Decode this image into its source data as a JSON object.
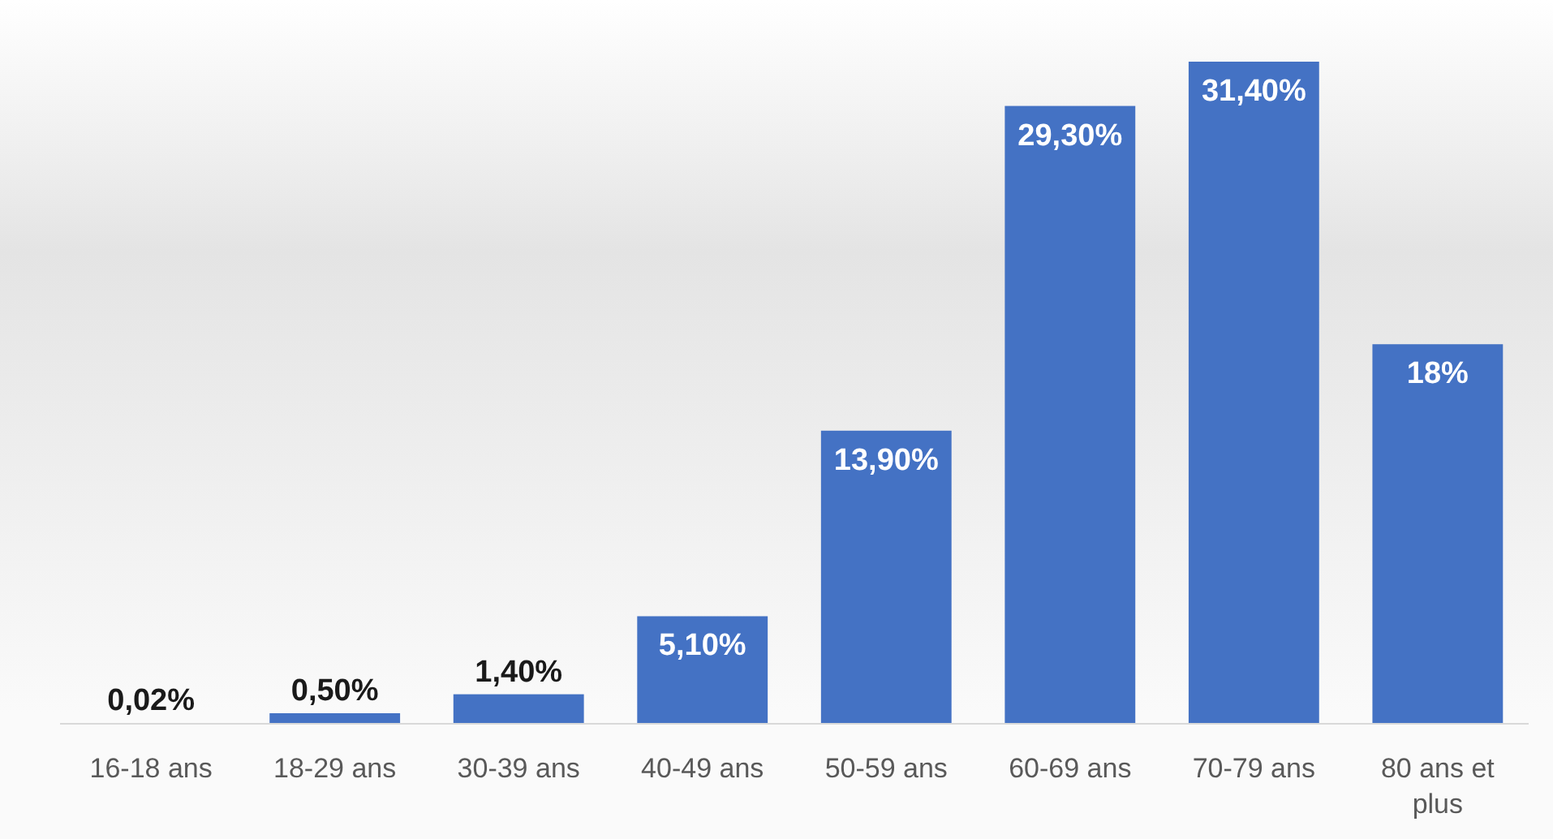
{
  "chart_data": {
    "type": "bar",
    "categories": [
      "16-18 ans",
      "18-29 ans",
      "30-39 ans",
      "40-49 ans",
      "50-59 ans",
      "60-69 ans",
      "70-79 ans",
      "80 ans et plus"
    ],
    "values": [
      0.02,
      0.5,
      1.4,
      5.1,
      13.9,
      29.3,
      31.4,
      18
    ],
    "value_labels": [
      "0,02%",
      "0,50%",
      "1,40%",
      "5,10%",
      "13,90%",
      "29,30%",
      "31,40%",
      "18%"
    ],
    "color": "#4472c4"
  }
}
